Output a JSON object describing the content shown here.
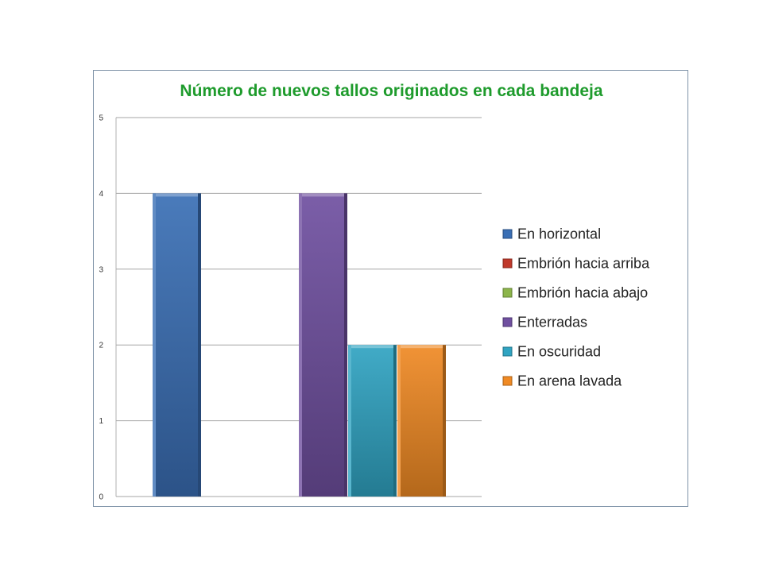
{
  "chart_data": {
    "type": "bar",
    "title": "Número de nuevos tallos originados en cada bandeja",
    "xlabel": "",
    "ylabel": "",
    "ylim": [
      0,
      5
    ],
    "yticks": [
      "0",
      "1",
      "2",
      "3",
      "4",
      "5"
    ],
    "grid": true,
    "legend_position": "right",
    "series": [
      {
        "name": "En horizontal",
        "value": 4,
        "color": "#3a6fb5"
      },
      {
        "name": "Embrión hacia arriba",
        "value": 0,
        "color": "#c0392b"
      },
      {
        "name": "Embrión hacia abajo",
        "value": 0,
        "color": "#8cb54a"
      },
      {
        "name": "Enterradas",
        "value": 4,
        "color": "#7050a0"
      },
      {
        "name": "En oscuridad",
        "value": 2,
        "color": "#30a4c2"
      },
      {
        "name": "En arena lavada",
        "value": 2,
        "color": "#f08a24"
      }
    ]
  }
}
